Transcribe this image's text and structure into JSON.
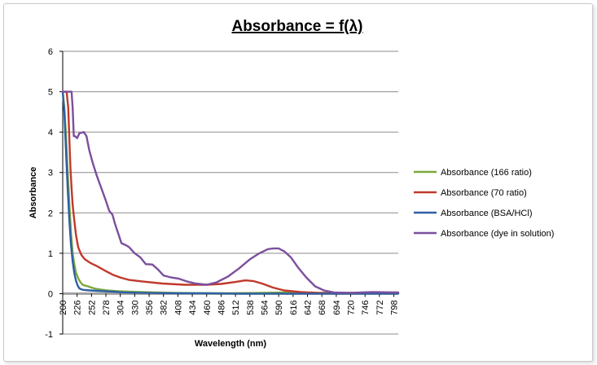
{
  "chart_data": {
    "type": "line",
    "title": "Absorbance = f(λ)",
    "xlabel": "Wavelength (nm)",
    "ylabel": "Absorbance",
    "xlim": [
      200,
      806
    ],
    "ylim": [
      -1,
      6
    ],
    "y_ticks": [
      "-1",
      "0",
      "1",
      "2",
      "3",
      "4",
      "5",
      "6"
    ],
    "x_ticks": [
      "200",
      "226",
      "252",
      "278",
      "304",
      "330",
      "356",
      "382",
      "408",
      "434",
      "460",
      "486",
      "512",
      "538",
      "564",
      "590",
      "616",
      "642",
      "668",
      "694",
      "720",
      "746",
      "772",
      "798"
    ],
    "grid": "horizontal",
    "legend_position": "right",
    "series": [
      {
        "name": "Absorbance (166 ratio)",
        "color": "#7aa73c",
        "x": [
          200,
          203,
          206,
          209,
          212,
          215,
          218,
          221,
          224,
          228,
          232,
          236,
          240,
          246,
          252,
          260,
          270,
          280,
          300,
          340,
          400,
          460,
          500,
          560,
          600,
          650,
          700,
          760,
          806
        ],
        "y": [
          5,
          4.6,
          3.9,
          3.0,
          2.2,
          1.5,
          1.0,
          0.72,
          0.52,
          0.38,
          0.28,
          0.22,
          0.2,
          0.18,
          0.15,
          0.12,
          0.1,
          0.08,
          0.06,
          0.04,
          0.02,
          0.01,
          0.01,
          0.02,
          0.03,
          0.02,
          0.02,
          0.03,
          0.03
        ]
      },
      {
        "name": "Absorbance (70 ratio)",
        "color": "#c0392b",
        "x": [
          200,
          204,
          207,
          210,
          212,
          214,
          216,
          218,
          221,
          224,
          228,
          234,
          240,
          250,
          262,
          275,
          290,
          304,
          320,
          345,
          380,
          420,
          460,
          486,
          512,
          530,
          545,
          560,
          580,
          600,
          630,
          660,
          700,
          760,
          806
        ],
        "y": [
          5,
          5,
          5,
          4.6,
          3.8,
          3.1,
          2.6,
          2.2,
          1.8,
          1.45,
          1.15,
          0.95,
          0.85,
          0.76,
          0.68,
          0.58,
          0.47,
          0.4,
          0.34,
          0.3,
          0.25,
          0.22,
          0.22,
          0.24,
          0.29,
          0.33,
          0.31,
          0.25,
          0.15,
          0.08,
          0.04,
          0.02,
          0.01,
          0.01,
          0.01
        ]
      },
      {
        "name": "Absorbance (BSA/HCl)",
        "color": "#2e5fa3",
        "x": [
          200,
          203,
          206,
          209,
          212,
          215,
          218,
          221,
          224,
          227,
          230,
          235,
          240,
          250,
          262,
          276,
          290,
          310,
          340,
          400,
          460,
          520,
          600,
          700,
          806
        ],
        "y": [
          5,
          4.5,
          3.5,
          2.6,
          1.8,
          1.2,
          0.8,
          0.5,
          0.32,
          0.2,
          0.13,
          0.1,
          0.09,
          0.08,
          0.07,
          0.06,
          0.05,
          0.03,
          0.02,
          0.01,
          0.01,
          0,
          0,
          0,
          0
        ]
      },
      {
        "name": "Absorbance (dye in solution)",
        "color": "#7b4f9d",
        "x": [
          200,
          214,
          216,
          218,
          220,
          222,
          226,
          230,
          238,
          243,
          248,
          255,
          262,
          270,
          278,
          284,
          290,
          294,
          300,
          306,
          314,
          320,
          330,
          340,
          350,
          362,
          372,
          382,
          396,
          410,
          425,
          440,
          460,
          478,
          498,
          518,
          538,
          555,
          570,
          580,
          590,
          600,
          612,
          625,
          640,
          656,
          672,
          690,
          720,
          760,
          800,
          806
        ],
        "y": [
          5,
          5,
          5,
          4.6,
          3.9,
          3.9,
          3.85,
          3.97,
          4.0,
          3.9,
          3.55,
          3.2,
          2.9,
          2.6,
          2.3,
          2.05,
          1.95,
          1.75,
          1.5,
          1.25,
          1.2,
          1.15,
          1.0,
          0.9,
          0.73,
          0.72,
          0.6,
          0.45,
          0.4,
          0.37,
          0.3,
          0.25,
          0.22,
          0.28,
          0.42,
          0.62,
          0.85,
          1.0,
          1.1,
          1.12,
          1.12,
          1.05,
          0.9,
          0.65,
          0.4,
          0.18,
          0.08,
          0.03,
          0.02,
          0.04,
          0.03,
          0.03
        ]
      }
    ],
    "baseline_color": "#a0a0a0"
  }
}
